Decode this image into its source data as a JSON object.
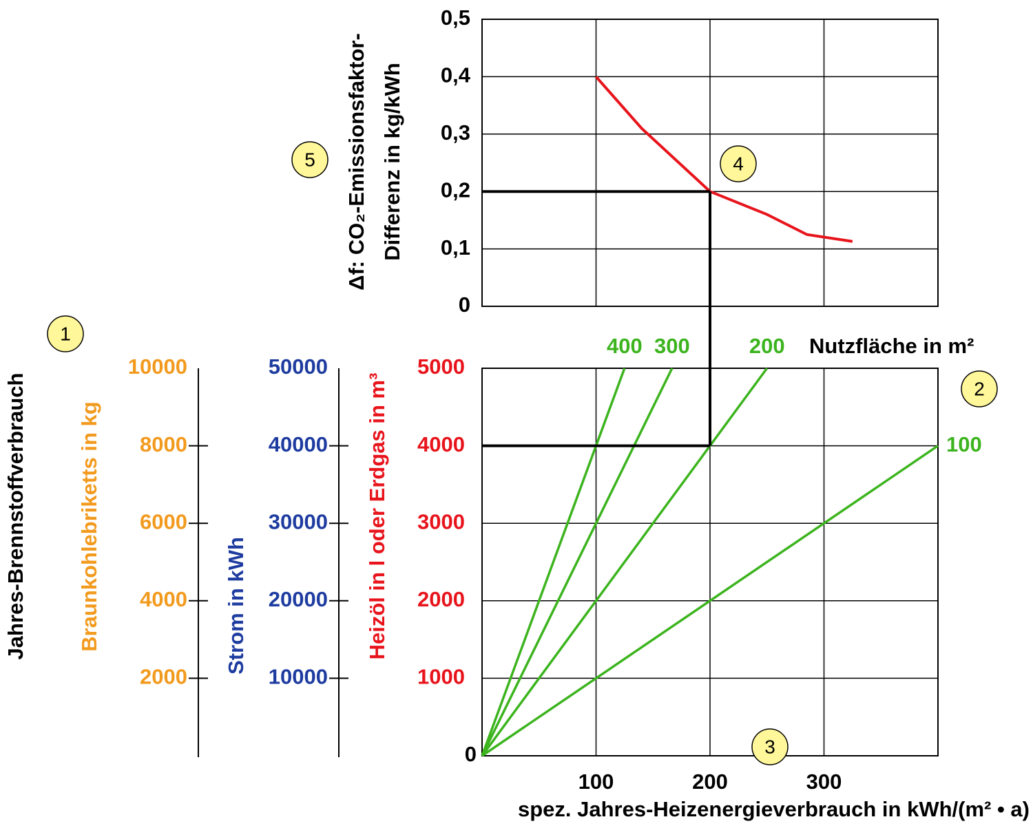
{
  "chart_data": [
    {
      "type": "line",
      "ylabel": [
        "Δf: CO₂-Emissionsfaktor-",
        "Differenz in kg/kWh"
      ],
      "x": [
        100,
        140,
        200,
        250,
        285,
        325
      ],
      "series": [
        {
          "color": "#e8141c",
          "values": [
            0.4,
            0.31,
            0.2,
            0.16,
            0.125,
            0.113
          ]
        }
      ],
      "xlim": [
        0,
        400
      ],
      "xticks": [
        100,
        200,
        300
      ],
      "ylim": [
        0,
        0.5
      ],
      "yticks": [
        0,
        {
          "value": 0.1,
          "label": "0,1"
        },
        {
          "value": 0.2,
          "label": "0,2"
        },
        {
          "value": 0.3,
          "label": "0,3"
        },
        {
          "value": 0.4,
          "label": "0,4"
        },
        {
          "value": 0.5,
          "label": "0,5"
        }
      ],
      "grid": true
    },
    {
      "type": "line",
      "title": "Jahres-Brennstoffverbrauch",
      "xlabel": "spez. Jahres-Heizenergieverbrauch in kWh/(m² • a)",
      "legend_title": "Nutzfläche in m²",
      "ylabel": "Heizöl in l oder Erdgas in m³",
      "ycolor": "#e8141c",
      "xlim": [
        0,
        400
      ],
      "xticks": [
        100,
        200,
        300
      ],
      "ylim": [
        0,
        5000
      ],
      "yticks": [
        0,
        1000,
        2000,
        3000,
        4000,
        5000
      ],
      "grid": true,
      "series": [
        {
          "name": "400",
          "color": "#3cb41e",
          "x": [
            0,
            125
          ],
          "values": [
            0,
            5000
          ]
        },
        {
          "name": "300",
          "color": "#3cb41e",
          "x": [
            0,
            166.7
          ],
          "values": [
            0,
            5000
          ]
        },
        {
          "name": "200",
          "color": "#3cb41e",
          "x": [
            0,
            250
          ],
          "values": [
            0,
            5000
          ]
        },
        {
          "name": "100",
          "color": "#3cb41e",
          "x": [
            0,
            400
          ],
          "values": [
            0,
            4000
          ]
        }
      ],
      "extra_axes": [
        {
          "label": "Strom in kWh",
          "color": "#1e3ca0",
          "ylim": [
            0,
            50000
          ],
          "yticks": [
            10000,
            20000,
            30000,
            40000,
            50000
          ]
        },
        {
          "label": "Braunkohlebriketts in kg",
          "color": "#f29a1e",
          "ylim": [
            0,
            10000
          ],
          "yticks": [
            2000,
            4000,
            6000,
            8000,
            10000
          ]
        }
      ]
    }
  ],
  "example": {
    "x": 200,
    "factor": 0.2,
    "fuel": 4000
  },
  "callouts": [
    "1",
    "2",
    "3",
    "4",
    "5"
  ]
}
